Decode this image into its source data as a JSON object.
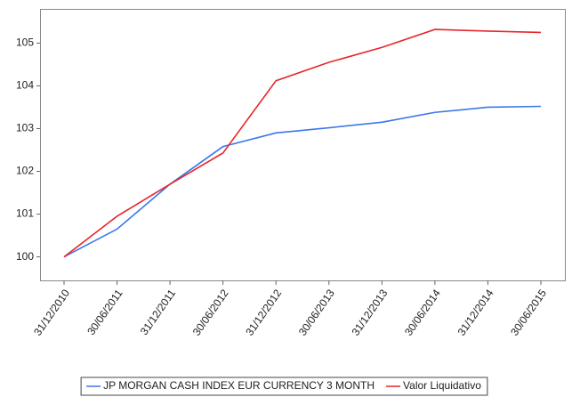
{
  "chart_data": {
    "type": "line",
    "categories": [
      "31/12/2010",
      "30/06/2011",
      "31/12/2011",
      "30/06/2012",
      "31/12/2012",
      "30/06/2013",
      "31/12/2013",
      "30/06/2014",
      "31/12/2014",
      "30/06/2015"
    ],
    "series": [
      {
        "name": "JP MORGAN CASH INDEX EUR CURRENCY 3 MONTH",
        "color": "#3b78e7",
        "values": [
          100,
          100.65,
          101.7,
          102.58,
          102.9,
          103.02,
          103.15,
          103.38,
          103.5,
          103.52
        ]
      },
      {
        "name": "Valor Liquidativo",
        "color": "#e8252a",
        "values": [
          100,
          100.95,
          101.7,
          102.43,
          104.12,
          104.55,
          104.9,
          105.32,
          105.28,
          105.25
        ]
      }
    ],
    "ylim": [
      99.45,
      105.8
    ],
    "yticks": [
      100,
      101,
      102,
      103,
      104,
      105
    ],
    "grid": false,
    "legend": "bottom"
  }
}
